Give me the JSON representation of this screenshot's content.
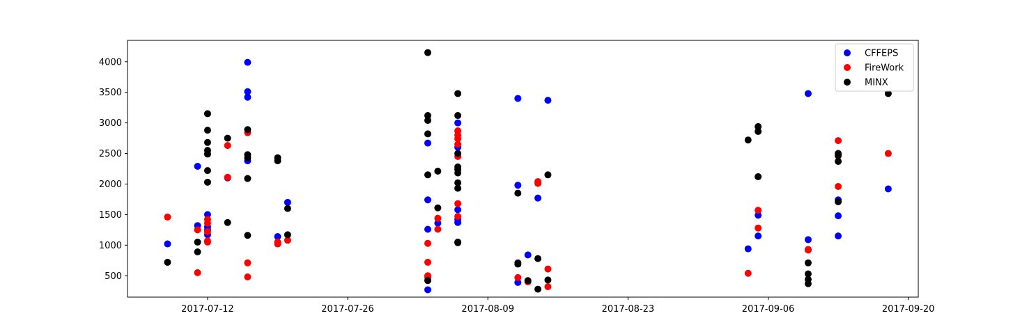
{
  "chart_data": {
    "type": "scatter",
    "x_axis_type": "date",
    "xlim": [
      "2017-07-04",
      "2017-09-21"
    ],
    "ylim": [
      150,
      4350
    ],
    "x_ticks": [
      "2017-07-12",
      "2017-07-26",
      "2017-08-09",
      "2017-08-23",
      "2017-09-06",
      "2017-09-20"
    ],
    "y_ticks": [
      500,
      1000,
      1500,
      2000,
      2500,
      3000,
      3500,
      4000
    ],
    "grid": false,
    "legend_position": "top-right",
    "series": [
      {
        "name": "CFFEPS",
        "color": "#0000ff",
        "points": [
          [
            "2017-07-08",
            1020
          ],
          [
            "2017-07-11",
            2290
          ],
          [
            "2017-07-11",
            1320
          ],
          [
            "2017-07-12",
            1500
          ],
          [
            "2017-07-12",
            1300
          ],
          [
            "2017-07-12",
            1250
          ],
          [
            "2017-07-12",
            1170
          ],
          [
            "2017-07-14",
            2100
          ],
          [
            "2017-07-16",
            3990
          ],
          [
            "2017-07-16",
            3510
          ],
          [
            "2017-07-16",
            3420
          ],
          [
            "2017-07-16",
            2380
          ],
          [
            "2017-07-19",
            1140
          ],
          [
            "2017-07-20",
            1700
          ],
          [
            "2017-08-03",
            2670
          ],
          [
            "2017-08-03",
            1740
          ],
          [
            "2017-08-03",
            1260
          ],
          [
            "2017-08-03",
            270
          ],
          [
            "2017-08-04",
            1360
          ],
          [
            "2017-08-06",
            3000
          ],
          [
            "2017-08-06",
            2600
          ],
          [
            "2017-08-06",
            1580
          ],
          [
            "2017-08-06",
            1420
          ],
          [
            "2017-08-06",
            1370
          ],
          [
            "2017-08-12",
            3400
          ],
          [
            "2017-08-12",
            1980
          ],
          [
            "2017-08-12",
            390
          ],
          [
            "2017-08-13",
            840
          ],
          [
            "2017-08-14",
            1770
          ],
          [
            "2017-08-15",
            3370
          ],
          [
            "2017-09-04",
            940
          ],
          [
            "2017-09-05",
            1490
          ],
          [
            "2017-09-05",
            1150
          ],
          [
            "2017-09-10",
            3480
          ],
          [
            "2017-09-10",
            1090
          ],
          [
            "2017-09-13",
            1740
          ],
          [
            "2017-09-13",
            1480
          ],
          [
            "2017-09-13",
            1150
          ],
          [
            "2017-09-18",
            1920
          ]
        ]
      },
      {
        "name": "FireWork",
        "color": "#ff0000",
        "points": [
          [
            "2017-07-08",
            1460
          ],
          [
            "2017-07-11",
            1250
          ],
          [
            "2017-07-11",
            550
          ],
          [
            "2017-07-12",
            1420
          ],
          [
            "2017-07-12",
            1360
          ],
          [
            "2017-07-12",
            1220
          ],
          [
            "2017-07-12",
            1070
          ],
          [
            "2017-07-12",
            1050
          ],
          [
            "2017-07-14",
            2630
          ],
          [
            "2017-07-14",
            2110
          ],
          [
            "2017-07-16",
            2840
          ],
          [
            "2017-07-16",
            710
          ],
          [
            "2017-07-16",
            480
          ],
          [
            "2017-07-19",
            1050
          ],
          [
            "2017-07-19",
            1020
          ],
          [
            "2017-07-20",
            1080
          ],
          [
            "2017-08-03",
            1030
          ],
          [
            "2017-08-03",
            720
          ],
          [
            "2017-08-03",
            500
          ],
          [
            "2017-08-03",
            470
          ],
          [
            "2017-08-04",
            1440
          ],
          [
            "2017-08-04",
            1260
          ],
          [
            "2017-08-06",
            2870
          ],
          [
            "2017-08-06",
            2800
          ],
          [
            "2017-08-06",
            2740
          ],
          [
            "2017-08-06",
            2650
          ],
          [
            "2017-08-06",
            2450
          ],
          [
            "2017-08-06",
            1680
          ],
          [
            "2017-08-06",
            1470
          ],
          [
            "2017-08-12",
            470
          ],
          [
            "2017-08-13",
            400
          ],
          [
            "2017-08-14",
            2040
          ],
          [
            "2017-08-14",
            2010
          ],
          [
            "2017-08-15",
            610
          ],
          [
            "2017-08-15",
            320
          ],
          [
            "2017-09-04",
            540
          ],
          [
            "2017-09-05",
            1570
          ],
          [
            "2017-09-05",
            1280
          ],
          [
            "2017-09-10",
            930
          ],
          [
            "2017-09-10",
            920
          ],
          [
            "2017-09-13",
            2710
          ],
          [
            "2017-09-13",
            1960
          ],
          [
            "2017-09-13",
            2460
          ],
          [
            "2017-09-18",
            2500
          ]
        ]
      },
      {
        "name": "MINX",
        "color": "#000000",
        "points": [
          [
            "2017-07-08",
            720
          ],
          [
            "2017-07-11",
            1050
          ],
          [
            "2017-07-11",
            890
          ],
          [
            "2017-07-12",
            3150
          ],
          [
            "2017-07-12",
            2880
          ],
          [
            "2017-07-12",
            2680
          ],
          [
            "2017-07-12",
            2550
          ],
          [
            "2017-07-12",
            2490
          ],
          [
            "2017-07-12",
            2220
          ],
          [
            "2017-07-12",
            2030
          ],
          [
            "2017-07-14",
            2750
          ],
          [
            "2017-07-14",
            1370
          ],
          [
            "2017-07-16",
            2890
          ],
          [
            "2017-07-16",
            2480
          ],
          [
            "2017-07-16",
            2430
          ],
          [
            "2017-07-16",
            2090
          ],
          [
            "2017-07-16",
            1160
          ],
          [
            "2017-07-19",
            2430
          ],
          [
            "2017-07-19",
            2380
          ],
          [
            "2017-07-20",
            1600
          ],
          [
            "2017-07-20",
            1170
          ],
          [
            "2017-08-03",
            4150
          ],
          [
            "2017-08-03",
            3120
          ],
          [
            "2017-08-03",
            3040
          ],
          [
            "2017-08-03",
            2820
          ],
          [
            "2017-08-03",
            2150
          ],
          [
            "2017-08-03",
            420
          ],
          [
            "2017-08-04",
            2210
          ],
          [
            "2017-08-04",
            1610
          ],
          [
            "2017-08-06",
            3480
          ],
          [
            "2017-08-06",
            3120
          ],
          [
            "2017-08-06",
            2500
          ],
          [
            "2017-08-06",
            2280
          ],
          [
            "2017-08-06",
            2240
          ],
          [
            "2017-08-06",
            2180
          ],
          [
            "2017-08-06",
            2020
          ],
          [
            "2017-08-06",
            1930
          ],
          [
            "2017-08-06",
            1050
          ],
          [
            "2017-08-06",
            1040
          ],
          [
            "2017-08-12",
            1850
          ],
          [
            "2017-08-12",
            710
          ],
          [
            "2017-08-12",
            690
          ],
          [
            "2017-08-13",
            420
          ],
          [
            "2017-08-14",
            780
          ],
          [
            "2017-08-14",
            280
          ],
          [
            "2017-08-15",
            2150
          ],
          [
            "2017-08-15",
            430
          ],
          [
            "2017-09-04",
            2720
          ],
          [
            "2017-09-05",
            2940
          ],
          [
            "2017-09-05",
            2860
          ],
          [
            "2017-09-05",
            2120
          ],
          [
            "2017-09-10",
            710
          ],
          [
            "2017-09-10",
            530
          ],
          [
            "2017-09-10",
            440
          ],
          [
            "2017-09-10",
            370
          ],
          [
            "2017-09-13",
            2500
          ],
          [
            "2017-09-13",
            2470
          ],
          [
            "2017-09-13",
            2370
          ],
          [
            "2017-09-13",
            1710
          ],
          [
            "2017-09-18",
            3480
          ]
        ]
      }
    ]
  }
}
